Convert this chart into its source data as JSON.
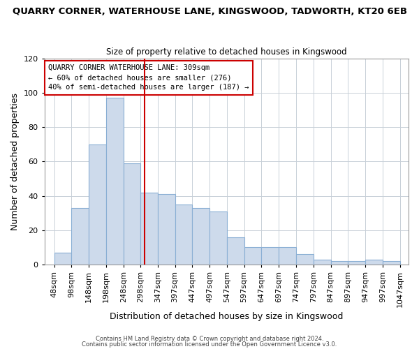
{
  "title": "QUARRY CORNER, WATERHOUSE LANE, KINGSWOOD, TADWORTH, KT20 6EB",
  "subtitle": "Size of property relative to detached houses in Kingswood",
  "xlabel": "Distribution of detached houses by size in Kingswood",
  "ylabel": "Number of detached properties",
  "bar_color": "#cddaeb",
  "bar_edge_color": "#8aafd4",
  "grid_color": "#c8d0d8",
  "vline_x": 309,
  "vline_color": "#cc0000",
  "annotation_title": "QUARRY CORNER WATERHOUSE LANE: 309sqm",
  "annotation_line1": "← 60% of detached houses are smaller (276)",
  "annotation_line2": "40% of semi-detached houses are larger (187) →",
  "bin_edges": [
    48,
    98,
    148,
    198,
    248,
    298,
    347,
    397,
    447,
    497,
    547,
    597,
    647,
    697,
    747,
    797,
    847,
    897,
    947,
    997,
    1047
  ],
  "heights": [
    7,
    33,
    70,
    97,
    59,
    42,
    41,
    35,
    33,
    31,
    16,
    10,
    10,
    10,
    6,
    3,
    2,
    2,
    3,
    2
  ],
  "xtick_labels": [
    "48sqm",
    "98sqm",
    "148sqm",
    "198sqm",
    "248sqm",
    "298sqm",
    "347sqm",
    "397sqm",
    "447sqm",
    "497sqm",
    "547sqm",
    "597sqm",
    "647sqm",
    "697sqm",
    "747sqm",
    "797sqm",
    "847sqm",
    "897sqm",
    "947sqm",
    "997sqm",
    "1047sqm"
  ],
  "xtick_positions": [
    48,
    98,
    148,
    198,
    248,
    298,
    347,
    397,
    447,
    497,
    547,
    597,
    647,
    697,
    747,
    797,
    847,
    897,
    947,
    997,
    1047
  ],
  "ylim": [
    0,
    120
  ],
  "yticks": [
    0,
    20,
    40,
    60,
    80,
    100,
    120
  ],
  "footer1": "Contains HM Land Registry data © Crown copyright and database right 2024.",
  "footer2": "Contains public sector information licensed under the Open Government Licence v3.0.",
  "background_color": "#ffffff",
  "title_fontsize": 9.5,
  "subtitle_fontsize": 8.5
}
